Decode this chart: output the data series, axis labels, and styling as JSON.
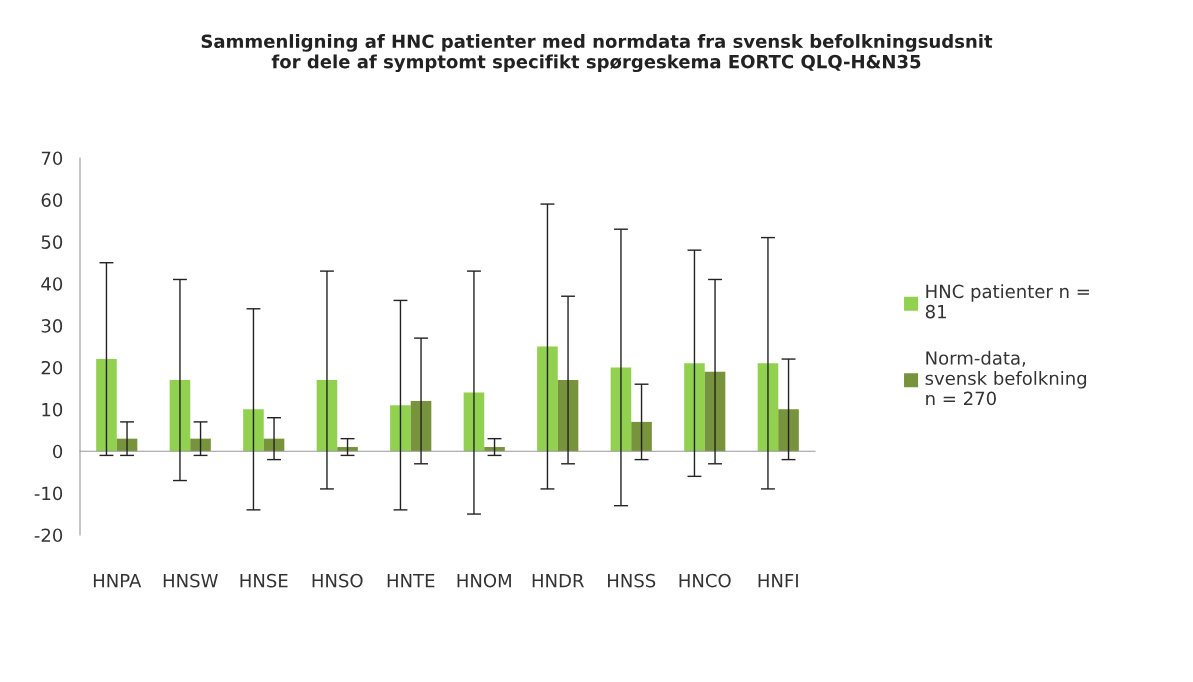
{
  "chart_data": {
    "type": "bar",
    "title": "Sammenligning af HNC patienter med normdata fra svensk befolkningsudsnit\nfor dele af symptomt specifikt spørgeskema EORTC QLQ-H&N35",
    "categories": [
      "HNPA",
      "HNSW",
      "HNSE",
      "HNSO",
      "HNTE",
      "HNOM",
      "HNDR",
      "HNSS",
      "HNCO",
      "HNFI"
    ],
    "series": [
      {
        "name": "HNC patienter n =\n81",
        "color": "#92d050",
        "values": [
          22,
          17,
          10,
          17,
          11,
          14,
          25,
          20,
          21,
          21
        ],
        "errors": [
          [
            -1,
            45
          ],
          [
            -7,
            41
          ],
          [
            -14,
            34
          ],
          [
            -9,
            43
          ],
          [
            -14,
            36
          ],
          [
            -15,
            43
          ],
          [
            -9,
            59
          ],
          [
            -13,
            53
          ],
          [
            -6,
            48
          ],
          [
            -9,
            51
          ]
        ]
      },
      {
        "name": "Norm-data,\nsvensk befolkning\nn = 270",
        "color": "#77933c",
        "values": [
          3,
          3,
          3,
          1,
          12,
          1,
          17,
          7,
          19,
          10
        ],
        "errors": [
          [
            -1,
            7
          ],
          [
            -1,
            7
          ],
          [
            -2,
            8
          ],
          [
            -1,
            3
          ],
          [
            -3,
            27
          ],
          [
            -1,
            3
          ],
          [
            -3,
            37
          ],
          [
            -2,
            16
          ],
          [
            -3,
            41
          ],
          [
            -2,
            22
          ]
        ]
      }
    ],
    "ylim": [
      -20,
      70
    ],
    "yticks": [
      -20,
      -10,
      0,
      10,
      20,
      30,
      40,
      50,
      60,
      70
    ],
    "legend": "right"
  }
}
